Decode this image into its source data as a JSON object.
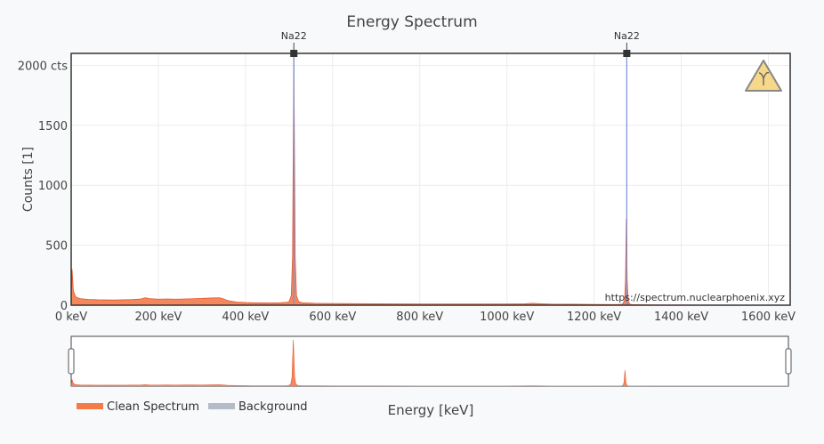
{
  "chart_data": {
    "type": "area",
    "title": "Energy Spectrum",
    "xlabel": "Energy [keV]",
    "ylabel": "Counts [1]",
    "xlim": [
      0,
      1650
    ],
    "ylim": [
      0,
      2100
    ],
    "x_ticks": [
      0,
      200,
      400,
      600,
      800,
      1000,
      1200,
      1400,
      1600
    ],
    "x_tick_labels": [
      "0 keV",
      "200 keV",
      "400 keV",
      "600 keV",
      "800 keV",
      "1000 keV",
      "1200 keV",
      "1400 keV",
      "1600 keV"
    ],
    "y_ticks": [
      0,
      500,
      1000,
      1500,
      2000
    ],
    "y_tick_labels": [
      "0",
      "500",
      "1000",
      "1500",
      "2000 cts"
    ],
    "grid": true,
    "legend_position": "bottom-left",
    "series": [
      {
        "name": "Clean Spectrum",
        "color": "#f47a4a",
        "x": [
          0,
          2,
          5,
          10,
          20,
          40,
          60,
          80,
          100,
          120,
          140,
          160,
          170,
          180,
          200,
          220,
          240,
          260,
          280,
          300,
          320,
          340,
          350,
          360,
          380,
          400,
          420,
          440,
          460,
          480,
          495,
          500,
          505,
          508,
          511,
          514,
          517,
          522,
          530,
          560,
          600,
          700,
          800,
          900,
          1000,
          1040,
          1060,
          1080,
          1100,
          1150,
          1200,
          1250,
          1265,
          1270,
          1272,
          1274,
          1276,
          1278,
          1282,
          1290,
          1350,
          1400,
          1500,
          1600,
          1650
        ],
        "y": [
          0,
          300,
          120,
          70,
          55,
          48,
          45,
          44,
          43,
          45,
          47,
          52,
          62,
          55,
          50,
          52,
          50,
          52,
          54,
          56,
          60,
          62,
          52,
          38,
          26,
          22,
          20,
          19,
          18,
          20,
          24,
          30,
          80,
          400,
          2100,
          400,
          80,
          30,
          20,
          16,
          14,
          12,
          10,
          10,
          10,
          12,
          16,
          12,
          9,
          8,
          6,
          5,
          8,
          40,
          200,
          720,
          200,
          40,
          8,
          4,
          2,
          2,
          1,
          1,
          1
        ]
      },
      {
        "name": "Background",
        "color": "#b4bcc8",
        "x": [
          0,
          1650
        ],
        "y": [
          0,
          0
        ]
      }
    ],
    "annotations": [
      {
        "label": "Na22",
        "x": 511
      },
      {
        "label": "Na22",
        "x": 1275
      }
    ],
    "watermark": "https://spectrum.nuclearphoenix.xyz"
  },
  "logo_icon": "gamma-radiation-icon",
  "colors": {
    "accent": "#f47a4a",
    "background_series": "#b4bcc8",
    "peak_line": "#7b8fd8",
    "plot_bg": "#ffffff",
    "page_bg": "#f8f9fb"
  }
}
